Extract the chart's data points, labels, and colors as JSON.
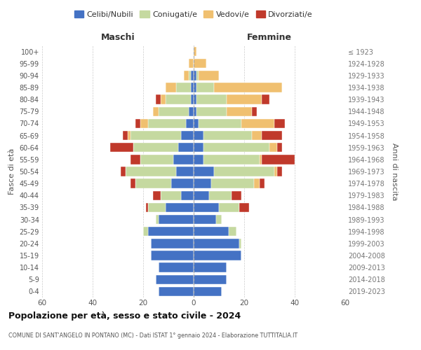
{
  "age_groups": [
    "0-4",
    "5-9",
    "10-14",
    "15-19",
    "20-24",
    "25-29",
    "30-34",
    "35-39",
    "40-44",
    "45-49",
    "50-54",
    "55-59",
    "60-64",
    "65-69",
    "70-74",
    "75-79",
    "80-84",
    "85-89",
    "90-94",
    "95-99",
    "100+"
  ],
  "birth_years": [
    "2019-2023",
    "2014-2018",
    "2009-2013",
    "2004-2008",
    "1999-2003",
    "1994-1998",
    "1989-1993",
    "1984-1988",
    "1979-1983",
    "1974-1978",
    "1969-1973",
    "1964-1968",
    "1959-1963",
    "1954-1958",
    "1949-1953",
    "1944-1948",
    "1939-1943",
    "1934-1938",
    "1929-1933",
    "1924-1928",
    "≤ 1923"
  ],
  "colors": {
    "celibi": "#4472C4",
    "coniugati": "#c5d9a0",
    "vedovi": "#f0c070",
    "divorziati": "#c0392b"
  },
  "maschi": {
    "celibi": [
      14,
      15,
      14,
      17,
      17,
      18,
      14,
      11,
      5,
      9,
      7,
      8,
      6,
      5,
      3,
      2,
      1,
      1,
      1,
      0,
      0
    ],
    "coniugati": [
      0,
      0,
      0,
      0,
      0,
      2,
      1,
      7,
      8,
      14,
      20,
      13,
      18,
      20,
      15,
      12,
      10,
      6,
      1,
      0,
      0
    ],
    "vedovi": [
      0,
      0,
      0,
      0,
      0,
      0,
      0,
      0,
      0,
      0,
      0,
      0,
      0,
      1,
      3,
      2,
      2,
      4,
      2,
      2,
      0
    ],
    "divorziati": [
      0,
      0,
      0,
      0,
      0,
      0,
      0,
      1,
      3,
      2,
      2,
      4,
      9,
      2,
      2,
      0,
      2,
      0,
      0,
      0,
      0
    ]
  },
  "femmine": {
    "celibi": [
      11,
      13,
      13,
      19,
      18,
      14,
      9,
      10,
      6,
      7,
      8,
      4,
      4,
      4,
      2,
      1,
      1,
      1,
      1,
      0,
      0
    ],
    "coniugati": [
      0,
      0,
      0,
      0,
      1,
      3,
      2,
      8,
      9,
      17,
      24,
      22,
      26,
      19,
      17,
      12,
      12,
      7,
      1,
      0,
      0
    ],
    "vedovi": [
      0,
      0,
      0,
      0,
      0,
      0,
      0,
      0,
      0,
      2,
      1,
      1,
      3,
      4,
      13,
      10,
      14,
      27,
      8,
      5,
      1
    ],
    "divorziati": [
      0,
      0,
      0,
      0,
      0,
      0,
      0,
      4,
      4,
      2,
      2,
      13,
      2,
      8,
      4,
      2,
      3,
      0,
      0,
      0,
      0
    ]
  },
  "title": "Popolazione per età, sesso e stato civile - 2024",
  "subtitle": "COMUNE DI SANT'ANGELO IN PONTANO (MC) - Dati ISTAT 1° gennaio 2024 - Elaborazione TUTTITALIA.IT",
  "xlabel_left": "Maschi",
  "xlabel_right": "Femmine",
  "ylabel_left": "Fasce di età",
  "ylabel_right": "Anni di nascita",
  "xlim": 60,
  "background_color": "#ffffff",
  "grid_color": "#cccccc",
  "legend_labels": [
    "Celibi/Nubili",
    "Coniugati/e",
    "Vedovi/e",
    "Divorziati/e"
  ]
}
